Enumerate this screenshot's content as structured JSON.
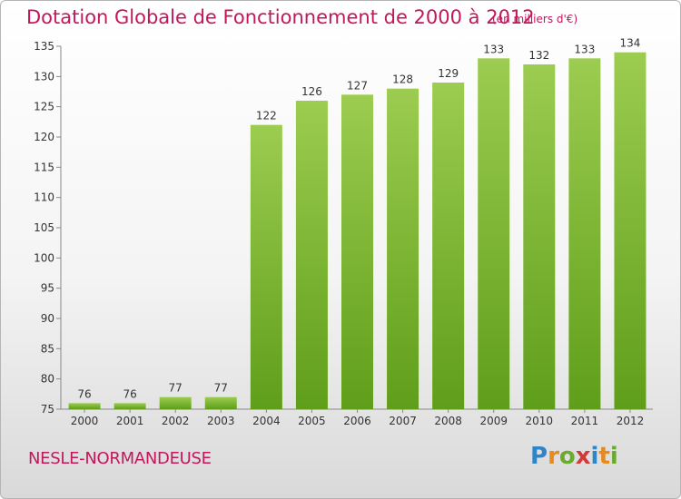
{
  "header": {
    "title": "Dotation Globale de Fonctionnement de 2000 à 2012",
    "unit": "(en milliers d'€)"
  },
  "footer": {
    "commune": "NESLE-NORMANDEUSE",
    "logo_letters": [
      "P",
      "r",
      "o",
      "x",
      "i",
      "t",
      "i"
    ],
    "logo_colors": [
      "#2e86c8",
      "#e58a1f",
      "#6aab2e",
      "#d23a3a",
      "#2e86c8",
      "#e58a1f",
      "#6aab2e"
    ]
  },
  "chart_data": {
    "type": "bar",
    "categories": [
      "2000",
      "2001",
      "2002",
      "2003",
      "2004",
      "2005",
      "2006",
      "2007",
      "2008",
      "2009",
      "2010",
      "2011",
      "2012"
    ],
    "values": [
      76,
      76,
      77,
      77,
      122,
      126,
      127,
      128,
      129,
      133,
      132,
      133,
      134
    ],
    "ylim": [
      75,
      135
    ],
    "yticks": [
      75,
      80,
      85,
      90,
      95,
      100,
      105,
      110,
      115,
      120,
      125,
      130,
      135
    ],
    "grid": false,
    "bar_color_top": "#9ccc50",
    "bar_color_bottom": "#5f9e1a"
  }
}
